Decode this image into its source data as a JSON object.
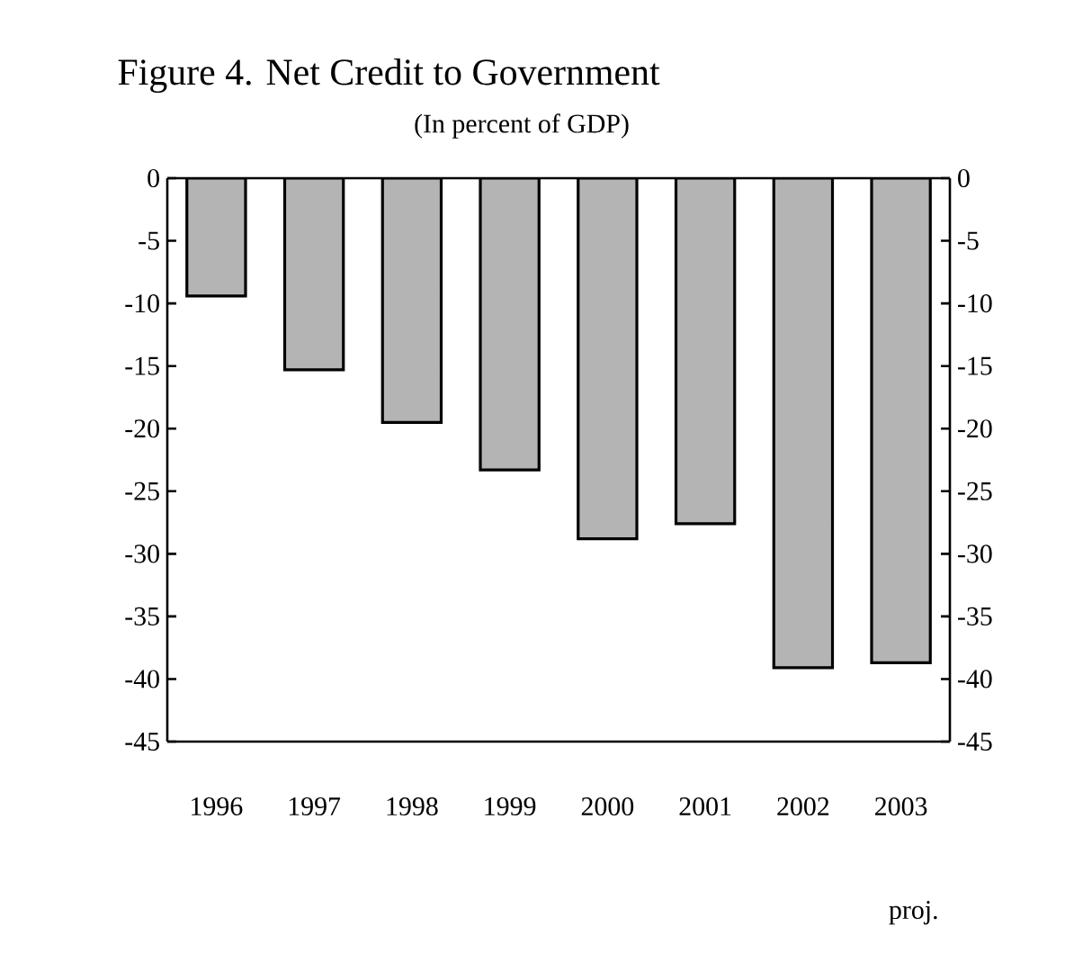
{
  "chart_data": {
    "type": "bar",
    "title": "Figure 4. Net Credit to Government",
    "subtitle": "(In percent of GDP)",
    "categories": [
      "1996",
      "1997",
      "1998",
      "1999",
      "2000",
      "2001",
      "2002",
      "2003"
    ],
    "values": [
      -9.4,
      -15.3,
      -19.5,
      -23.3,
      -28.8,
      -27.6,
      -39.1,
      -38.7
    ],
    "color": "#b4b4b4",
    "ylim": [
      -45,
      0
    ],
    "yticks": [
      0,
      -5,
      -10,
      -15,
      -20,
      -25,
      -30,
      -35,
      -40,
      -45
    ],
    "y2lim": [
      -45,
      0
    ],
    "y2ticks": [
      0,
      -5,
      -10,
      -15,
      -20,
      -25,
      -30,
      -35,
      -40,
      -45
    ],
    "annotations": [
      "proj."
    ]
  }
}
